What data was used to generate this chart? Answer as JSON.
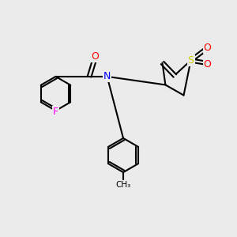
{
  "background_color": "#ebebeb",
  "bond_color": "#000000",
  "bond_width": 1.5,
  "atom_colors": {
    "F": "#ff00ff",
    "O": "#ff0000",
    "N": "#0000ff",
    "S": "#cccc00",
    "C": "#000000"
  },
  "font_size": 9,
  "font_size_small": 8
}
